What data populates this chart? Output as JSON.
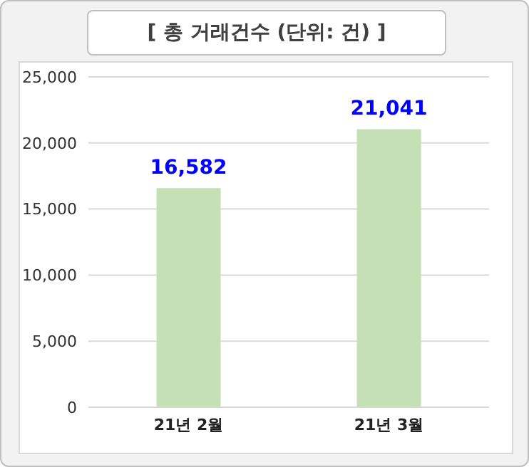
{
  "chart_data": {
    "type": "bar",
    "title": "[ 총 거래건수 (단위: 건) ]",
    "categories": [
      "21년 2월",
      "21년 3월"
    ],
    "values": [
      16582,
      21041
    ],
    "color": "#c5e0b4",
    "value_labels": [
      "16,582",
      "21,041"
    ],
    "ylim": [
      0,
      25000
    ],
    "yticks": [
      0,
      {
        "value": 5000,
        "label": "5,000"
      },
      {
        "value": 10000,
        "label": "10,000"
      },
      {
        "value": 15000,
        "label": "15,000"
      },
      {
        "value": 20000,
        "label": "20,000"
      },
      {
        "value": 25000,
        "label": "25,000"
      }
    ],
    "grid": "y"
  }
}
